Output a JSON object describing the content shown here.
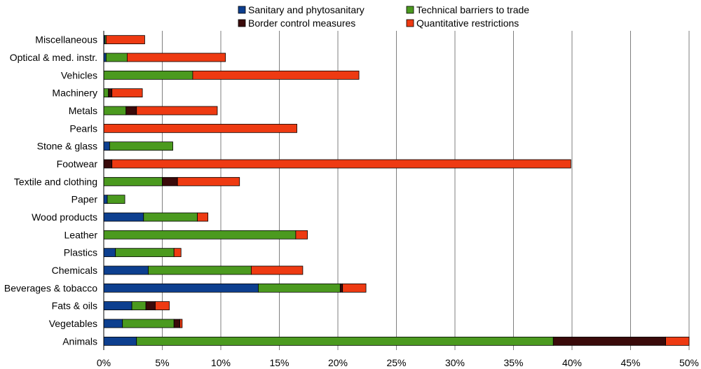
{
  "chart_data": {
    "type": "bar",
    "orientation": "horizontal",
    "stacked": true,
    "categories": [
      "Miscellaneous",
      "Optical & med. instr.",
      "Vehicles",
      "Machinery",
      "Metals",
      "Pearls",
      "Stone & glass",
      "Footwear",
      "Textile and clothing",
      "Paper",
      "Wood products",
      "Leather",
      "Plastics",
      "Chemicals",
      "Beverages & tobacco",
      "Fats & oils",
      "Vegetables",
      "Animals"
    ],
    "series": [
      {
        "name": "Sanitary and phytosanitary",
        "color": "#0d3f8f",
        "values": [
          0.1,
          0.2,
          0,
          0,
          0,
          0,
          0.5,
          0,
          0,
          0.3,
          3.4,
          0,
          1.0,
          3.8,
          13.2,
          2.4,
          1.6,
          2.8
        ]
      },
      {
        "name": "Technical barriers to trade",
        "color": "#4b9a1f",
        "values": [
          0.1,
          1.8,
          7.6,
          0.4,
          1.9,
          0,
          5.4,
          0,
          5.0,
          1.5,
          4.6,
          16.4,
          5.0,
          8.8,
          7.0,
          1.2,
          4.4,
          35.6
        ]
      },
      {
        "name": "Border control measures",
        "color": "#3a0a0a",
        "values": [
          0,
          0,
          0,
          0.3,
          0.9,
          0,
          0,
          0.7,
          1.3,
          0,
          0,
          0,
          0,
          0,
          0.2,
          0.8,
          0.5,
          9.6
        ]
      },
      {
        "name": "Quantitative restrictions",
        "color": "#ee3a12",
        "values": [
          3.3,
          8.4,
          14.2,
          2.6,
          6.9,
          16.5,
          0,
          39.2,
          5.3,
          0,
          0.9,
          1.0,
          0.6,
          4.4,
          2.0,
          1.2,
          0.2,
          2.0
        ]
      }
    ],
    "xlim": [
      0,
      50
    ],
    "xticks": [
      0,
      5,
      10,
      15,
      20,
      25,
      30,
      35,
      40,
      45,
      50
    ],
    "xtick_labels": [
      "0%",
      "5%",
      "10%",
      "15%",
      "20%",
      "25%",
      "30%",
      "35%",
      "40%",
      "45%",
      "50%"
    ],
    "grid": "vertical",
    "legend_position": "top",
    "title": "",
    "xlabel": "",
    "ylabel": ""
  }
}
